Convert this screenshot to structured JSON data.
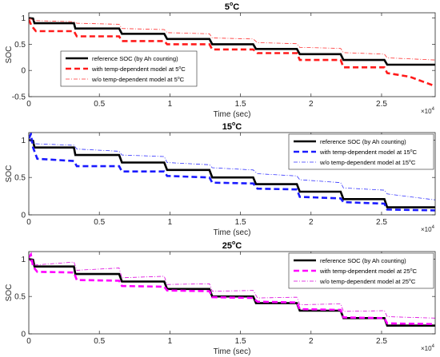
{
  "chart_data": [
    {
      "type": "line",
      "title": "5",
      "title_superscript": "o",
      "title_suffix": "C",
      "xlabel": "Time (sec)",
      "ylabel": "SOC",
      "xlim": [
        0,
        28800
      ],
      "ylim": [
        -0.5,
        1.1
      ],
      "xticks": [
        0,
        5000,
        10000,
        15000,
        20000,
        25000
      ],
      "xtick_labels": [
        "0",
        "0.5",
        "1",
        "1.5",
        "2",
        "2.5"
      ],
      "yticks": [
        -0.5,
        0,
        0.5,
        1
      ],
      "ytick_labels": [
        "-0.5",
        "0",
        "0.5",
        "1"
      ],
      "x_exponent": "4",
      "x_exponent_base": "×10",
      "grid": false,
      "legend_position": "center-left",
      "series": [
        {
          "name": "reference SOC (by Ah counting)",
          "name_superscript": "",
          "name_suffix": "",
          "color": "#000000",
          "style": "solid",
          "x": [
            0,
            300,
            400,
            3200,
            3300,
            6400,
            6600,
            9600,
            9800,
            12800,
            13000,
            15900,
            16100,
            19000,
            19200,
            22100,
            22300,
            25200,
            25400,
            28800
          ],
          "y": [
            1.0,
            0.99,
            0.9,
            0.9,
            0.8,
            0.8,
            0.7,
            0.7,
            0.6,
            0.6,
            0.5,
            0.5,
            0.41,
            0.41,
            0.31,
            0.31,
            0.2,
            0.2,
            0.11,
            0.11
          ]
        },
        {
          "name": "with temp-dependent model at 5",
          "name_superscript": "o",
          "name_suffix": "C",
          "color": "#ff1a1a",
          "style": "dash",
          "x": [
            0,
            200,
            500,
            3200,
            3400,
            6400,
            6600,
            9600,
            9800,
            12800,
            13000,
            15900,
            16200,
            19000,
            19200,
            22100,
            22300,
            25200,
            25400,
            27000,
            28800
          ],
          "y": [
            0.97,
            0.85,
            0.75,
            0.75,
            0.65,
            0.65,
            0.56,
            0.56,
            0.5,
            0.5,
            0.4,
            0.4,
            0.33,
            0.33,
            0.2,
            0.2,
            0.06,
            0.06,
            -0.05,
            -0.12,
            -0.3
          ]
        },
        {
          "name": "w/o temp-dependent model at 5",
          "name_superscript": "o",
          "name_suffix": "C",
          "color": "#ff3333",
          "style": "dashdot",
          "x": [
            0,
            400,
            3200,
            3400,
            6400,
            6600,
            9600,
            9800,
            12800,
            13000,
            15900,
            16200,
            19000,
            19200,
            22100,
            22300,
            25200,
            25400,
            28800
          ],
          "y": [
            1.0,
            0.95,
            0.93,
            0.9,
            0.88,
            0.8,
            0.78,
            0.72,
            0.7,
            0.62,
            0.6,
            0.53,
            0.51,
            0.44,
            0.42,
            0.34,
            0.31,
            0.24,
            0.2
          ]
        }
      ]
    },
    {
      "type": "line",
      "title": "15",
      "title_superscript": "o",
      "title_suffix": "C",
      "xlabel": "Time (sec)",
      "ylabel": "SOC",
      "xlim": [
        0,
        28800
      ],
      "ylim": [
        0,
        1.1
      ],
      "xticks": [
        0,
        5000,
        10000,
        15000,
        20000,
        25000
      ],
      "xtick_labels": [
        "0",
        "0.5",
        "1",
        "1.5",
        "2",
        "2.5"
      ],
      "yticks": [
        0,
        0.5,
        1
      ],
      "ytick_labels": [
        "0",
        "0.5",
        "1"
      ],
      "x_exponent": "4",
      "x_exponent_base": "×10",
      "grid": false,
      "legend_position": "top-right",
      "series": [
        {
          "name": "reference SOC (by Ah counting)",
          "name_superscript": "",
          "name_suffix": "",
          "color": "#000000",
          "style": "solid",
          "x": [
            0,
            300,
            400,
            3200,
            3300,
            6400,
            6600,
            9600,
            9800,
            12800,
            13000,
            15900,
            16100,
            19000,
            19200,
            22100,
            22300,
            25200,
            25400,
            28800
          ],
          "y": [
            1.0,
            0.99,
            0.9,
            0.9,
            0.8,
            0.8,
            0.7,
            0.7,
            0.6,
            0.6,
            0.5,
            0.5,
            0.41,
            0.41,
            0.31,
            0.31,
            0.21,
            0.21,
            0.1,
            0.1
          ]
        },
        {
          "name": "with temp-dependent model at 15",
          "name_superscript": "o",
          "name_suffix": "C",
          "color": "#1a1aff",
          "style": "dash",
          "x": [
            0,
            150,
            300,
            600,
            3200,
            3400,
            6400,
            6600,
            9600,
            9800,
            12800,
            13000,
            15900,
            16200,
            19000,
            19200,
            22100,
            22300,
            25200,
            25400,
            28800
          ],
          "y": [
            1.02,
            1.08,
            0.9,
            0.75,
            0.72,
            0.65,
            0.65,
            0.58,
            0.58,
            0.52,
            0.5,
            0.43,
            0.42,
            0.35,
            0.34,
            0.24,
            0.22,
            0.17,
            0.15,
            0.07,
            0.06
          ]
        },
        {
          "name": "w/o temp-dependent model at 15",
          "name_superscript": "o",
          "name_suffix": "C",
          "color": "#3333ff",
          "style": "dashdot",
          "x": [
            0,
            400,
            3200,
            3400,
            6400,
            6600,
            9600,
            9800,
            12800,
            13000,
            15900,
            16200,
            19000,
            19200,
            22100,
            22300,
            25200,
            25400,
            28800
          ],
          "y": [
            1.0,
            0.95,
            0.93,
            0.88,
            0.85,
            0.8,
            0.78,
            0.7,
            0.67,
            0.63,
            0.6,
            0.55,
            0.52,
            0.47,
            0.43,
            0.36,
            0.33,
            0.28,
            0.2
          ]
        }
      ]
    },
    {
      "type": "line",
      "title": "25",
      "title_superscript": "o",
      "title_suffix": "C",
      "xlabel": "Time (sec)",
      "ylabel": "SOC",
      "xlim": [
        0,
        28800
      ],
      "ylim": [
        0,
        1.1
      ],
      "xticks": [
        0,
        5000,
        10000,
        15000,
        20000,
        25000
      ],
      "xtick_labels": [
        "0",
        "0.5",
        "1",
        "1.5",
        "2",
        "2.5"
      ],
      "yticks": [
        0,
        0.5,
        1
      ],
      "ytick_labels": [
        "0",
        "0.5",
        "1"
      ],
      "x_exponent": "4",
      "x_exponent_base": "×10",
      "grid": false,
      "legend_position": "top-right",
      "series": [
        {
          "name": "reference SOC (by Ah counting)",
          "name_superscript": "",
          "name_suffix": "",
          "color": "#000000",
          "style": "solid",
          "x": [
            0,
            300,
            400,
            3200,
            3300,
            6400,
            6600,
            9600,
            9800,
            12800,
            13000,
            15900,
            16100,
            19000,
            19200,
            22100,
            22300,
            25200,
            25400,
            28800
          ],
          "y": [
            1.0,
            0.99,
            0.9,
            0.9,
            0.8,
            0.8,
            0.7,
            0.7,
            0.6,
            0.6,
            0.5,
            0.5,
            0.41,
            0.41,
            0.31,
            0.31,
            0.21,
            0.21,
            0.11,
            0.11
          ]
        },
        {
          "name": "with temp-dependent model at 25",
          "name_superscript": "o",
          "name_suffix": "C",
          "color": "#ff00ff",
          "style": "dash",
          "x": [
            0,
            150,
            300,
            600,
            3200,
            3400,
            6400,
            6600,
            9600,
            9800,
            12800,
            13000,
            15900,
            16200,
            19000,
            19200,
            22100,
            22300,
            25200,
            25400,
            28800
          ],
          "y": [
            1.02,
            1.06,
            0.9,
            0.83,
            0.82,
            0.72,
            0.71,
            0.64,
            0.63,
            0.58,
            0.57,
            0.49,
            0.48,
            0.43,
            0.42,
            0.33,
            0.32,
            0.22,
            0.21,
            0.14,
            0.13
          ]
        },
        {
          "name": "w/o temp-dependent model at 25",
          "name_superscript": "o",
          "name_suffix": "C",
          "color": "#dd00dd",
          "style": "dashdot",
          "x": [
            0,
            400,
            3200,
            3400,
            6400,
            6600,
            9600,
            9800,
            12800,
            13000,
            15900,
            16200,
            19000,
            19200,
            22100,
            22300,
            25200,
            25400,
            28800
          ],
          "y": [
            1.0,
            0.92,
            0.96,
            0.85,
            0.88,
            0.75,
            0.77,
            0.66,
            0.67,
            0.57,
            0.58,
            0.48,
            0.49,
            0.39,
            0.4,
            0.3,
            0.31,
            0.23,
            0.21
          ]
        }
      ]
    }
  ]
}
